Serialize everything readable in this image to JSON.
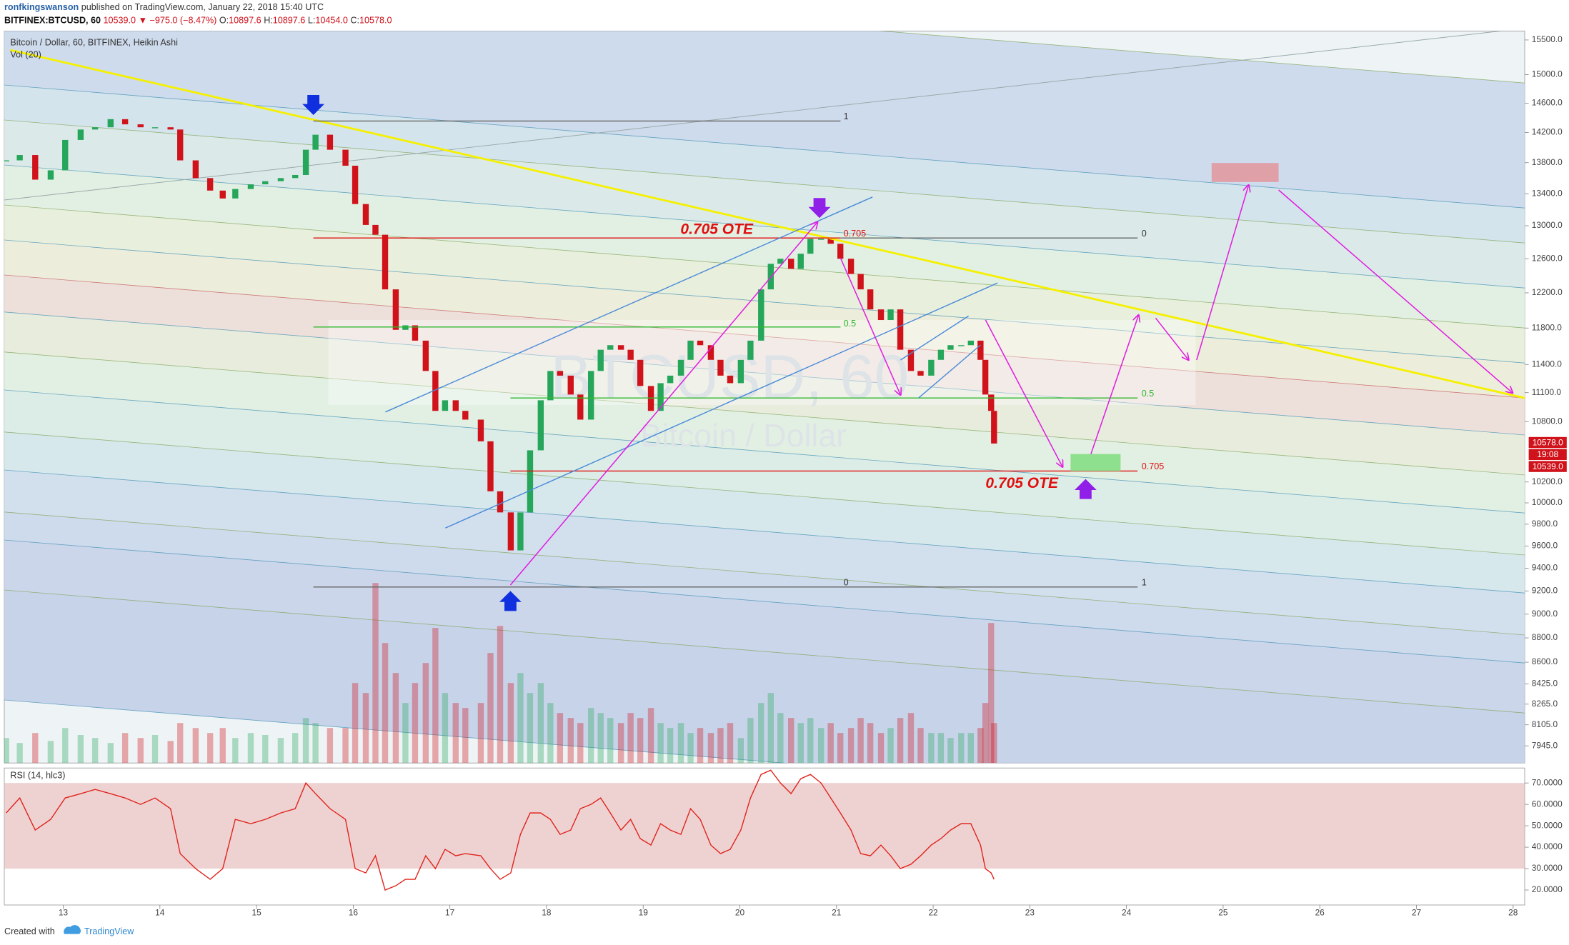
{
  "header": {
    "author": "ronfkingswanson",
    "published": "published on TradingView.com, January 22, 2018 15:40 UTC",
    "symbol": "BITFINEX:BTCUSD, 60",
    "last": "10539.0",
    "change": "▼ −975.0 (−8.47%)",
    "ohlc": [
      {
        "label": "O:",
        "value": "10897.6"
      },
      {
        "label": "H:",
        "value": "10897.6"
      },
      {
        "label": "L:",
        "value": "10454.0"
      },
      {
        "label": "C:",
        "value": "10578.0"
      }
    ]
  },
  "watermark": {
    "symbol": "BTCUSD, 60",
    "name": "Bitcoin / Dollar"
  },
  "annotations": {
    "ote_top": "0.705 OTE",
    "ote_bottom": "0.705 OTE",
    "fib_upper": [
      "1",
      "0.705",
      "0.5",
      "0"
    ],
    "fib_upper_right": [
      "0",
      "1"
    ],
    "fib_lower": [
      "0.5",
      "0.705"
    ]
  },
  "price_tags": [
    "10578.0",
    "19:08",
    "10539.0"
  ],
  "footer": {
    "created": "Created with",
    "brand": "TradingView"
  },
  "chart_data": [
    {
      "type": "candlestick",
      "title": "Bitcoin / Dollar, 60, BITFINEX, Heikin Ashi",
      "log_scale": true,
      "up_color": "#26a65b",
      "down_color": "#d0121b",
      "x": [
        12.41,
        12.55,
        12.71,
        12.87,
        13.02,
        13.18,
        13.33,
        13.49,
        13.64,
        13.8,
        13.95,
        14.11,
        14.21,
        14.37,
        14.52,
        14.65,
        14.78,
        14.94,
        15.09,
        15.25,
        15.4,
        15.51,
        15.61,
        15.76,
        15.92,
        16.02,
        16.13,
        16.23,
        16.33,
        16.44,
        16.54,
        16.64,
        16.75,
        16.85,
        16.95,
        17.06,
        17.16,
        17.32,
        17.42,
        17.52,
        17.63,
        17.73,
        17.83,
        17.94,
        18.04,
        18.14,
        18.25,
        18.35,
        18.46,
        18.56,
        18.66,
        18.77,
        18.87,
        18.97,
        19.08,
        19.18,
        19.28,
        19.39,
        19.49,
        19.59,
        19.7,
        19.8,
        19.9,
        20.01,
        20.11,
        20.22,
        20.32,
        20.42,
        20.53,
        20.63,
        20.73,
        20.84,
        20.94,
        21.04,
        21.15,
        21.25,
        21.35,
        21.46,
        21.56,
        21.66,
        21.77,
        21.87,
        21.98,
        22.08,
        22.18,
        22.29,
        22.39,
        22.49,
        22.54,
        22.6,
        22.63
      ],
      "values": [
        13830,
        13900,
        13580,
        13700,
        14100,
        14240,
        14270,
        14380,
        14310,
        14270,
        14270,
        14240,
        13830,
        13600,
        13440,
        13340,
        13460,
        13520,
        13560,
        13600,
        13640,
        13970,
        14170,
        13970,
        13760,
        13270,
        13010,
        12890,
        12240,
        11780,
        11830,
        11660,
        11330,
        10910,
        11020,
        10910,
        10820,
        10600,
        10110,
        9910,
        9560,
        9910,
        10510,
        11020,
        11330,
        11280,
        11080,
        10820,
        11330,
        11560,
        11610,
        11560,
        11450,
        11170,
        10910,
        11200,
        11280,
        11450,
        11660,
        11610,
        11450,
        11280,
        11200,
        11450,
        11660,
        12240,
        12540,
        12600,
        12480,
        12660,
        12840,
        12840,
        12780,
        12600,
        12420,
        12240,
        12010,
        11890,
        12010,
        11560,
        11330,
        11280,
        11450,
        11560,
        11610,
        11610,
        11660,
        11450,
        11080,
        10910,
        10578
      ],
      "xlim": [
        12.39,
        28.12
      ],
      "xticks": [
        13,
        14,
        15,
        16,
        17,
        18,
        19,
        20,
        21,
        22,
        23,
        24,
        25,
        26,
        27,
        28
      ],
      "ylim": [
        7817,
        15632
      ],
      "yticks": [
        {
          "value": 15500,
          "label": "15500.0"
        },
        {
          "value": 15000,
          "label": "15000.0"
        },
        {
          "value": 14600,
          "label": "14600.0"
        },
        {
          "value": 14200,
          "label": "14200.0"
        },
        {
          "value": 13800,
          "label": "13800.0"
        },
        {
          "value": 13400,
          "label": "13400.0"
        },
        {
          "value": 13000,
          "label": "13000.0"
        },
        {
          "value": 12600,
          "label": "12600.0"
        },
        {
          "value": 12200,
          "label": "12200.0"
        },
        {
          "value": 11800,
          "label": "11800.0"
        },
        {
          "value": 11400,
          "label": "11400.0"
        },
        {
          "value": 11100,
          "label": "11100.0"
        },
        {
          "value": 10800,
          "label": "10800.0"
        },
        {
          "value": 10200,
          "label": "10200.0"
        },
        {
          "value": 10000,
          "label": "10000.0"
        },
        {
          "value": 9800,
          "label": "9800.0"
        },
        {
          "value": 9600,
          "label": "9600.0"
        },
        {
          "value": 9400,
          "label": "9400.0"
        },
        {
          "value": 9200,
          "label": "9200.0"
        },
        {
          "value": 9000,
          "label": "9000.0"
        },
        {
          "value": 8800,
          "label": "8800.0"
        },
        {
          "value": 8600,
          "label": "8600.0"
        },
        {
          "value": 8425,
          "label": "8425.0"
        },
        {
          "value": 8265,
          "label": "8265.0"
        },
        {
          "value": 8105,
          "label": "8105.0"
        },
        {
          "value": 7945,
          "label": "7945.0"
        }
      ]
    },
    {
      "type": "bar",
      "title": "Vol (20)",
      "ylim": [
        0,
        200
      ],
      "x": [
        12.41,
        12.55,
        12.71,
        12.87,
        13.02,
        13.18,
        13.33,
        13.49,
        13.64,
        13.8,
        13.95,
        14.11,
        14.21,
        14.37,
        14.52,
        14.65,
        14.78,
        14.94,
        15.09,
        15.25,
        15.4,
        15.51,
        15.61,
        15.76,
        15.92,
        16.02,
        16.13,
        16.23,
        16.33,
        16.44,
        16.54,
        16.64,
        16.75,
        16.85,
        16.95,
        17.06,
        17.16,
        17.32,
        17.42,
        17.52,
        17.63,
        17.73,
        17.83,
        17.94,
        18.04,
        18.14,
        18.25,
        18.35,
        18.46,
        18.56,
        18.66,
        18.77,
        18.87,
        18.97,
        19.08,
        19.18,
        19.28,
        19.39,
        19.49,
        19.59,
        19.7,
        19.8,
        19.9,
        20.01,
        20.11,
        20.22,
        20.32,
        20.42,
        20.53,
        20.63,
        20.73,
        20.84,
        20.94,
        21.04,
        21.15,
        21.25,
        21.35,
        21.46,
        21.56,
        21.66,
        21.77,
        21.87,
        21.98,
        22.08,
        22.18,
        22.29,
        22.39,
        22.49,
        22.54,
        22.6,
        22.63
      ],
      "values": [
        25,
        20,
        30,
        22,
        35,
        28,
        25,
        20,
        30,
        25,
        28,
        22,
        40,
        35,
        30,
        35,
        25,
        30,
        28,
        25,
        30,
        45,
        40,
        35,
        35,
        80,
        70,
        180,
        120,
        90,
        60,
        80,
        100,
        135,
        70,
        60,
        55,
        60,
        110,
        137,
        80,
        90,
        70,
        80,
        60,
        50,
        45,
        40,
        55,
        50,
        45,
        40,
        50,
        45,
        55,
        40,
        35,
        40,
        30,
        35,
        30,
        35,
        40,
        25,
        45,
        60,
        70,
        50,
        45,
        40,
        45,
        35,
        40,
        30,
        35,
        45,
        40,
        30,
        35,
        45,
        50,
        35,
        30,
        30,
        25,
        30,
        30,
        35,
        60,
        140,
        40
      ]
    },
    {
      "type": "line",
      "title": "RSI (14, hlc3)",
      "color": "#e0241c",
      "band": [
        30,
        70
      ],
      "x": [
        12.41,
        12.55,
        12.71,
        12.87,
        13.02,
        13.18,
        13.33,
        13.49,
        13.64,
        13.8,
        13.95,
        14.11,
        14.21,
        14.37,
        14.52,
        14.65,
        14.78,
        14.94,
        15.09,
        15.25,
        15.4,
        15.51,
        15.61,
        15.76,
        15.92,
        16.02,
        16.13,
        16.23,
        16.33,
        16.44,
        16.54,
        16.64,
        16.75,
        16.85,
        16.95,
        17.06,
        17.16,
        17.32,
        17.42,
        17.52,
        17.63,
        17.73,
        17.83,
        17.94,
        18.04,
        18.14,
        18.25,
        18.35,
        18.46,
        18.56,
        18.66,
        18.77,
        18.87,
        18.97,
        19.08,
        19.18,
        19.28,
        19.39,
        19.49,
        19.59,
        19.7,
        19.8,
        19.9,
        20.01,
        20.11,
        20.22,
        20.32,
        20.42,
        20.53,
        20.63,
        20.73,
        20.84,
        20.94,
        21.04,
        21.15,
        21.25,
        21.35,
        21.46,
        21.56,
        21.66,
        21.77,
        21.87,
        21.98,
        22.08,
        22.18,
        22.29,
        22.39,
        22.49,
        22.54,
        22.6,
        22.63
      ],
      "values": [
        56,
        63,
        48,
        53,
        63,
        65,
        67,
        65,
        63,
        60,
        63,
        58,
        37,
        30,
        25,
        30,
        53,
        51,
        53,
        56,
        58,
        70,
        65,
        58,
        53,
        30,
        28,
        36,
        20,
        22,
        25,
        25,
        36,
        30,
        39,
        36,
        37,
        36,
        30,
        25,
        28,
        46,
        56,
        56,
        53,
        46,
        48,
        58,
        60,
        63,
        56,
        48,
        53,
        44,
        41,
        51,
        48,
        46,
        58,
        53,
        41,
        37,
        39,
        48,
        63,
        74,
        76,
        70,
        65,
        72,
        74,
        70,
        63,
        56,
        48,
        37,
        36,
        41,
        36,
        30,
        32,
        36,
        41,
        44,
        48,
        51,
        51,
        41,
        30,
        28,
        25
      ],
      "ylim": [
        13,
        77
      ],
      "yticks": [
        {
          "value": 70,
          "label": "70.0000"
        },
        {
          "value": 60,
          "label": "60.0000"
        },
        {
          "value": 50,
          "label": "50.0000"
        },
        {
          "value": 40,
          "label": "40.0000"
        },
        {
          "value": 30,
          "label": "30.0000"
        },
        {
          "value": 20,
          "label": "20.0000"
        }
      ]
    }
  ]
}
